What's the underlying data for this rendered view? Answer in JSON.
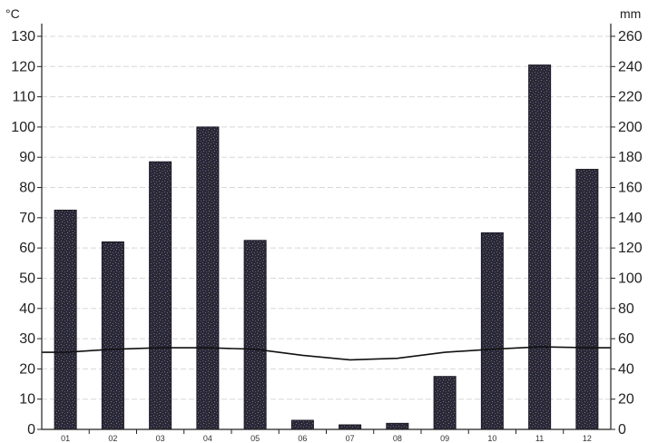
{
  "chart_data": {
    "type": "bar",
    "title": "",
    "categories": [
      "01",
      "02",
      "03",
      "04",
      "05",
      "06",
      "07",
      "08",
      "09",
      "10",
      "11",
      "12"
    ],
    "left_axis": {
      "unit": "°C",
      "ylim": [
        0,
        130
      ],
      "ticks": [
        0,
        10,
        20,
        30,
        40,
        50,
        60,
        70,
        80,
        90,
        100,
        110,
        120,
        130
      ]
    },
    "right_axis": {
      "unit": "mm",
      "ylim": [
        0,
        260
      ],
      "ticks": [
        0,
        20,
        40,
        60,
        80,
        100,
        120,
        140,
        160,
        180,
        200,
        220,
        240,
        260
      ]
    },
    "series": [
      {
        "type": "bar",
        "axis": "right",
        "values": [
          145,
          124,
          177,
          200,
          125,
          6,
          3,
          4,
          35,
          130,
          241,
          172
        ]
      },
      {
        "type": "line",
        "axis": "left",
        "values": [
          25.5,
          26.5,
          27,
          27,
          26.5,
          24.5,
          23,
          23.5,
          25.5,
          26.5,
          27.3,
          27
        ]
      }
    ],
    "grid": true,
    "legend": "none",
    "colors": {
      "bar": "#2a2838",
      "line": "#111111",
      "grid": "#d8d8d8",
      "axis": "#222222"
    }
  }
}
